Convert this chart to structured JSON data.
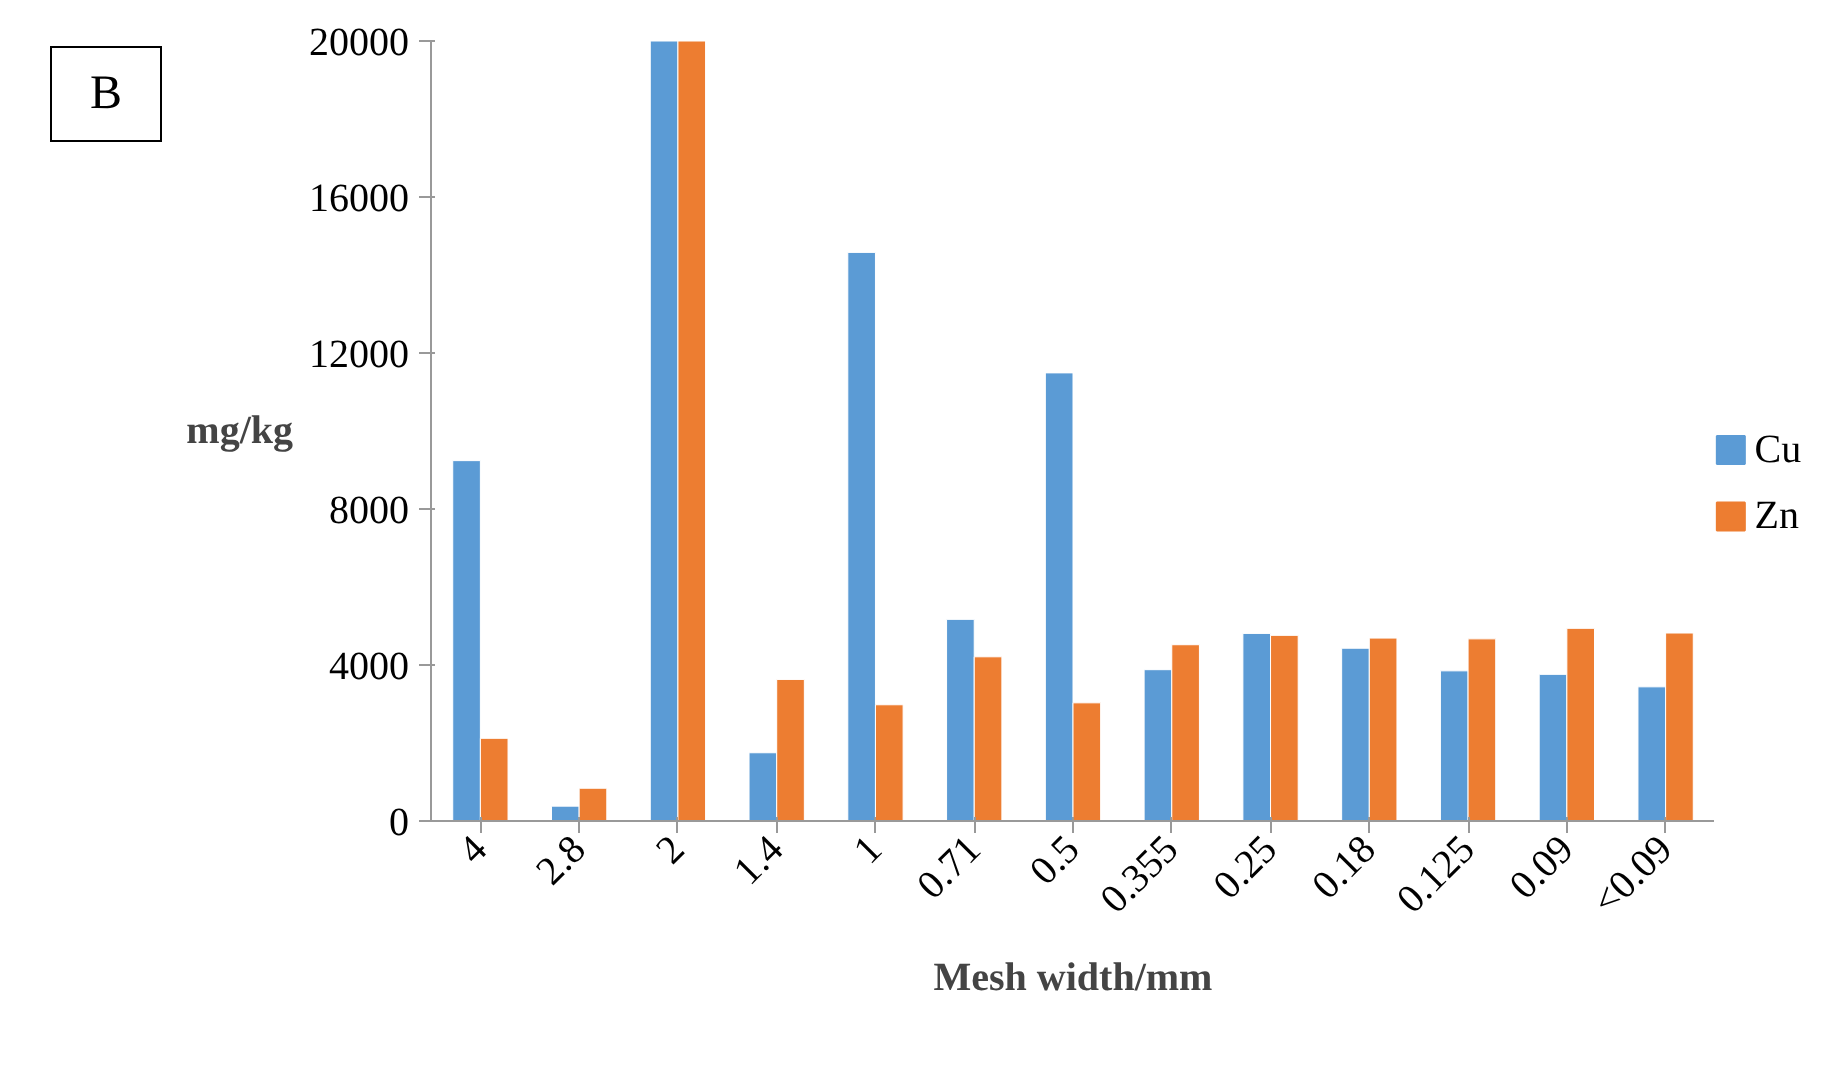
{
  "chart_data": {
    "type": "bar",
    "xlabel": "Mesh width/mm",
    "ylabel": "mg/kg",
    "categories": [
      "4",
      "2.8",
      "2",
      "1.4",
      "1",
      "0.71",
      "0.5",
      "0.355",
      "0.25",
      "0.18",
      "0.125",
      "0.09",
      "<0.09"
    ],
    "series": [
      {
        "name": "Cu",
        "color": "#5b9bd5",
        "values": [
          9240,
          380,
          20000,
          1750,
          14580,
          5170,
          11490,
          3880,
          4810,
          4430,
          3850,
          3760,
          3440
        ]
      },
      {
        "name": "Zn",
        "color": "#ed7d31",
        "values": [
          2120,
          840,
          20000,
          3630,
          2980,
          4210,
          3030,
          4520,
          4760,
          4690,
          4670,
          4940,
          4820
        ]
      }
    ],
    "ylim": [
      0,
      20000
    ],
    "yticks": [
      0,
      4000,
      8000,
      12000,
      16000,
      20000
    ],
    "grid": false,
    "legend": "right",
    "annotations": [
      "B"
    ]
  }
}
